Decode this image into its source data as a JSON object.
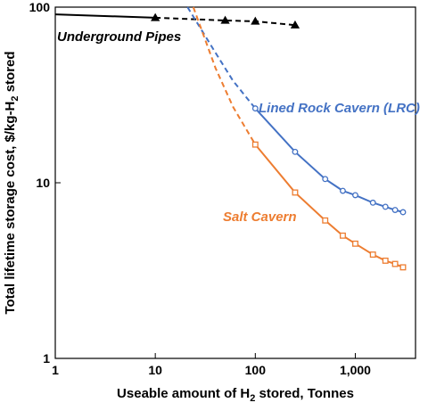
{
  "chart_data": {
    "type": "line",
    "xscale": "log",
    "yscale": "log",
    "x_label": [
      "Useable amount of H",
      "2",
      " stored, Tonnes"
    ],
    "y_label": [
      "Total lifetime storage cost, $/kg-H",
      "2",
      " stored"
    ],
    "xlim": [
      1,
      4000
    ],
    "ylim": [
      1,
      100
    ],
    "xticks": [
      1,
      10,
      100,
      {
        "value": 1000,
        "label": "1,000"
      }
    ],
    "yticks": [
      1,
      10,
      100
    ],
    "series": [
      {
        "name": "Underground Pipes",
        "color": "#000000",
        "marker": "triangle",
        "marker_on": "dashed",
        "solid": {
          "x": [
            1,
            10
          ],
          "values": [
            91,
            87
          ]
        },
        "dashed": {
          "x": [
            10,
            50,
            100,
            250
          ],
          "values": [
            87,
            84,
            83,
            79
          ]
        }
      },
      {
        "name": "Lined Rock Cavern (LRC)",
        "color": "#4472c4",
        "marker": "circle",
        "marker_on": "solid",
        "dashed": {
          "x": [
            21,
            40,
            60,
            100
          ],
          "values": [
            100,
            55,
            38,
            26.5
          ]
        },
        "solid": {
          "x": [
            100,
            250,
            500,
            750,
            1000,
            1500,
            2000,
            2500,
            3000
          ],
          "values": [
            26.5,
            15,
            10.5,
            9,
            8.5,
            7.7,
            7.3,
            7.0,
            6.8
          ]
        }
      },
      {
        "name": "Salt Cavern",
        "color": "#ed7d31",
        "marker": "square",
        "marker_on": "solid",
        "dashed": {
          "x": [
            24,
            40,
            60,
            100
          ],
          "values": [
            100,
            45,
            27,
            16.5
          ]
        },
        "solid": {
          "x": [
            100,
            250,
            500,
            750,
            1000,
            1500,
            2000,
            2500,
            3000
          ],
          "values": [
            16.5,
            8.8,
            6.1,
            5.0,
            4.5,
            3.9,
            3.6,
            3.45,
            3.3
          ]
        }
      }
    ]
  }
}
